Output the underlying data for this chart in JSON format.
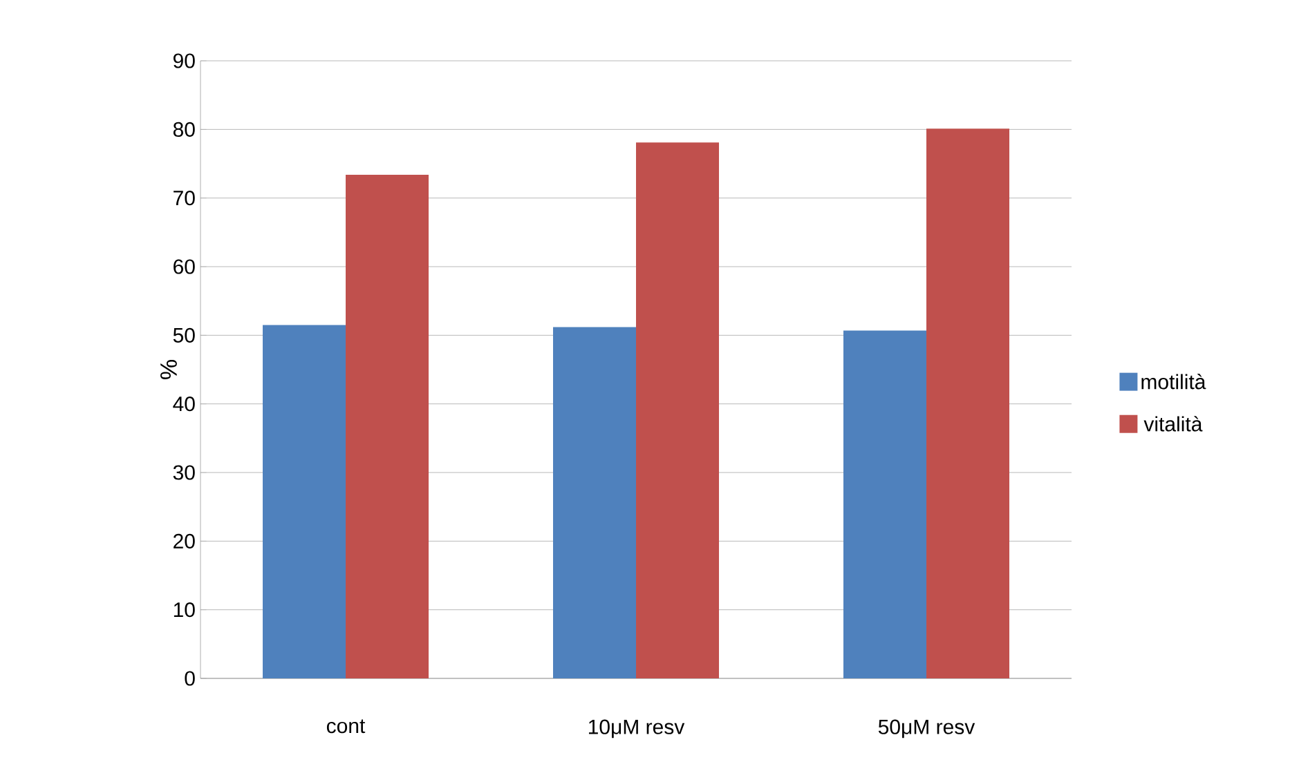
{
  "chart_data": {
    "type": "bar",
    "ylabel": "%",
    "categories": [
      "cont",
      "10μM resv",
      "50μM resv"
    ],
    "series": [
      {
        "name": "motilità",
        "color": "#4f81bd",
        "values": [
          51.5,
          51.2,
          50.7
        ]
      },
      {
        "name": "vitalità",
        "color": "#c0504d",
        "values": [
          73.4,
          78.1,
          80.1
        ]
      }
    ],
    "ylim": [
      0,
      90
    ],
    "yticks": [
      0,
      10,
      20,
      30,
      40,
      50,
      60,
      70,
      80,
      90
    ],
    "grid": "y",
    "legend": "right"
  }
}
